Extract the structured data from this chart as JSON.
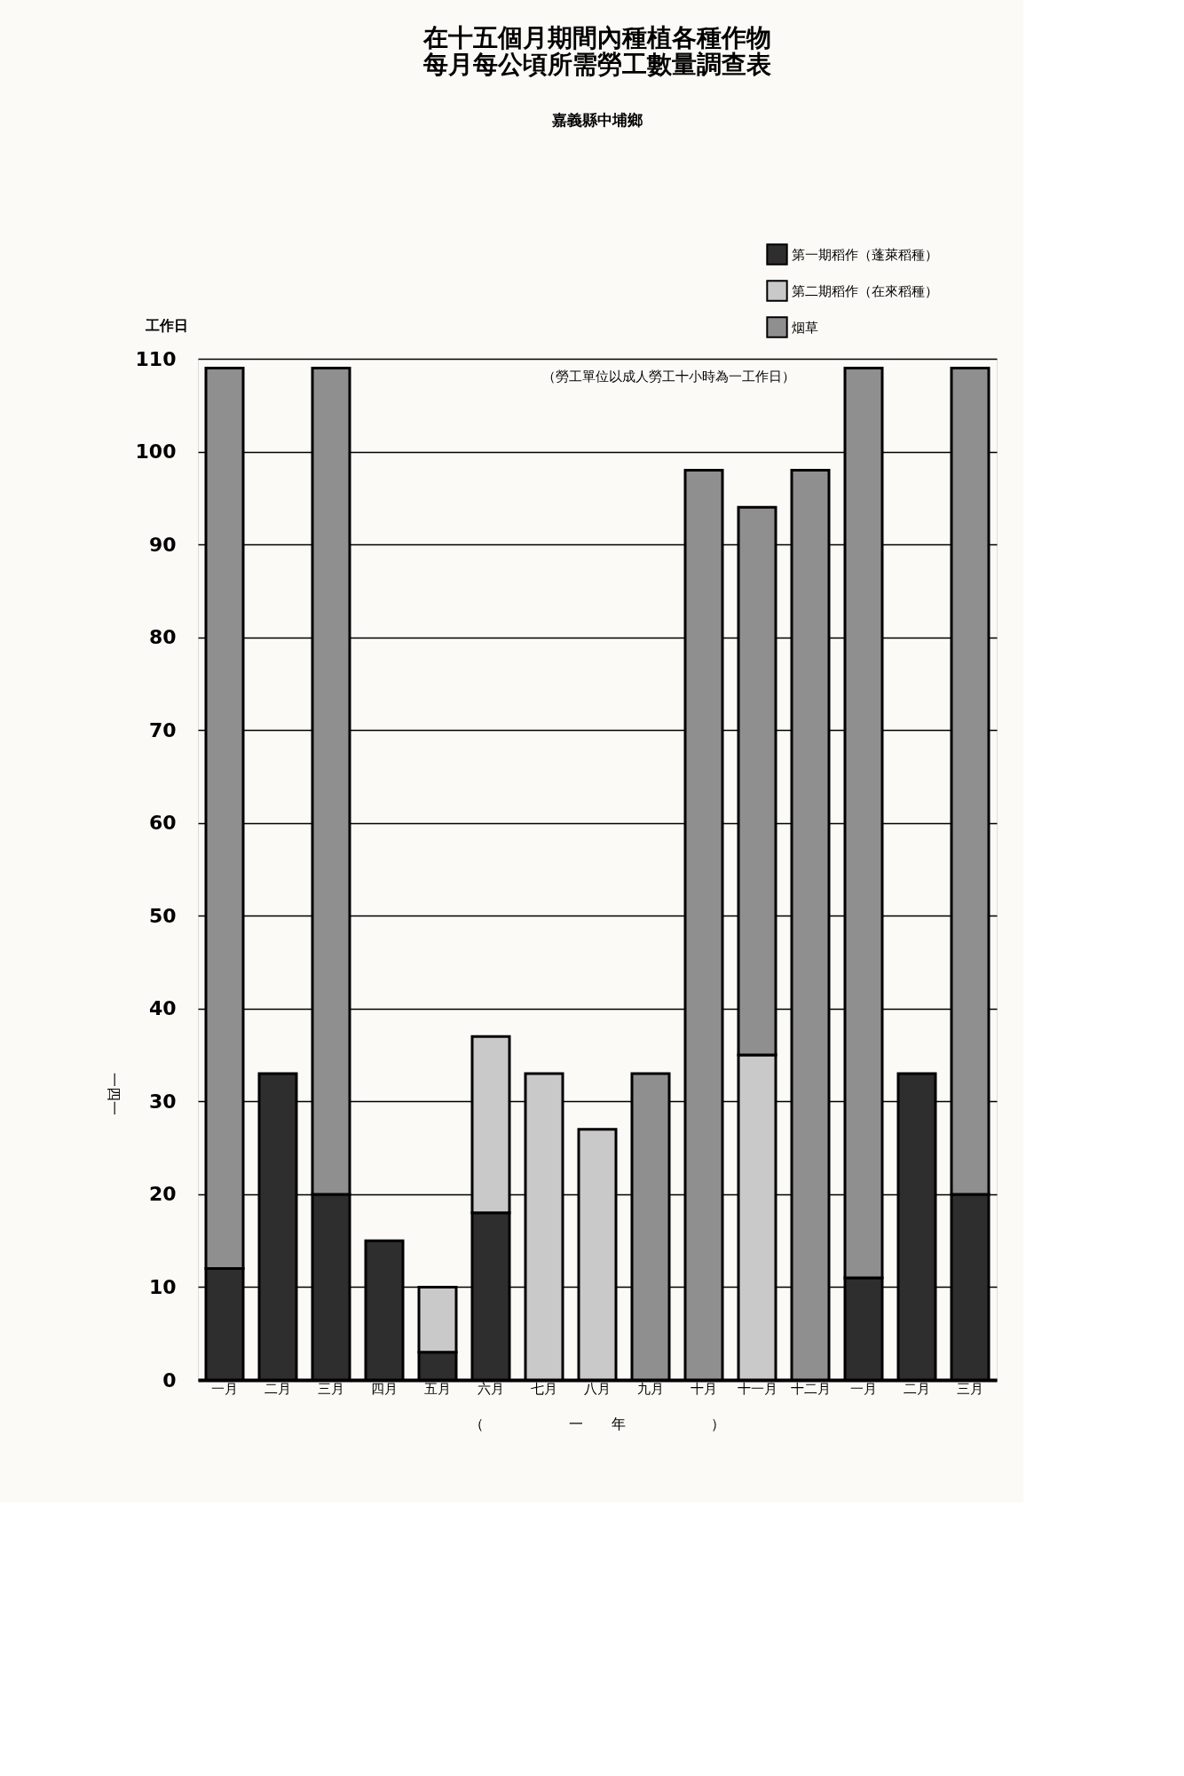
{
  "chart_data": {
    "type": "bar",
    "title": "在十五個月期間內種植各種作物每月每公頃所需勞工數量調查表",
    "subtitle": "嘉義縣中埔鄉",
    "ylabel": "工作日",
    "categories": [
      "一月",
      "二月",
      "三月",
      "四月",
      "五月",
      "六月",
      "七月",
      "八月",
      "九月",
      "十月",
      "十一月",
      "十二月",
      "一月",
      "二月",
      "三月"
    ],
    "stacked": true,
    "series": [
      {
        "name": "第一期稻作（蓬萊稻種）",
        "color": "#2e2e2e",
        "values": [
          12,
          33,
          20,
          15,
          3,
          18,
          null,
          null,
          null,
          null,
          null,
          null,
          11,
          33,
          20
        ]
      },
      {
        "name": "第二期稻作（在來稻種）",
        "color": "#c9c9c9",
        "values": [
          null,
          null,
          null,
          null,
          7,
          19,
          33,
          27,
          null,
          null,
          35,
          null,
          null,
          null,
          null
        ]
      },
      {
        "name": "烟草",
        "color": "#8f8f8f",
        "values": [
          97,
          null,
          89,
          null,
          null,
          null,
          null,
          null,
          33,
          98,
          59,
          98,
          98,
          null,
          89
        ]
      }
    ],
    "ylim": [
      0,
      110
    ],
    "yticks": [
      0,
      10,
      20,
      30,
      40,
      50,
      60,
      70,
      80,
      90,
      100,
      110
    ],
    "grid": "y",
    "legend": "top right",
    "annotations": [
      "（勞工單位以成人勞工十小時為一工作日）",
      "（　　　　　　一　　年　　　　　　）",
      "一四一"
    ]
  }
}
